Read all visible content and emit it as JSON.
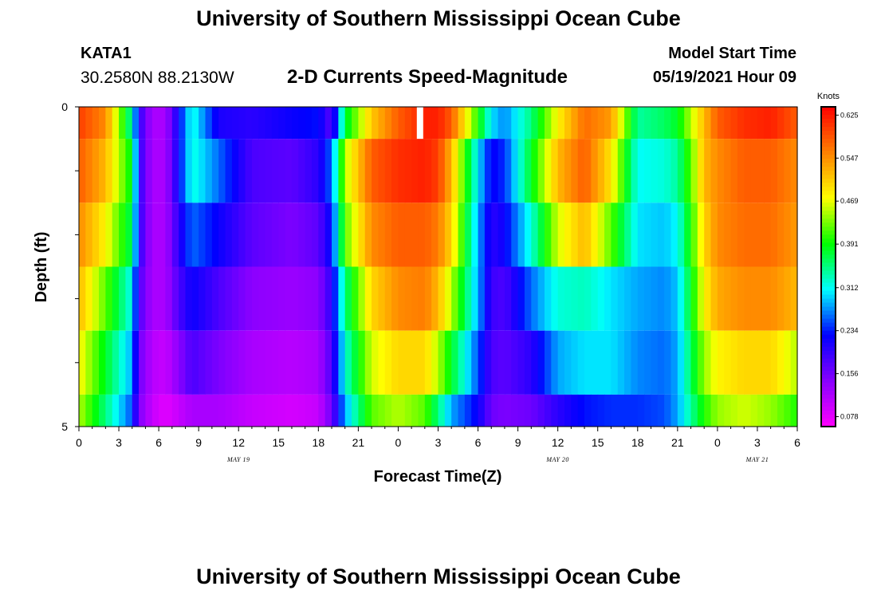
{
  "header": {
    "title": "University of Southern Mississippi Ocean Cube",
    "station": "KATA1",
    "coords": "30.2580N  88.2130W",
    "subtitle": "2-D Currents Speed-Magnitude",
    "model_start_label": "Model Start Time",
    "model_start_value": "05/19/2021 Hour 09"
  },
  "footer": {
    "title": "University of Southern Mississippi Ocean Cube"
  },
  "chart_data": {
    "type": "heatmap",
    "title": "2-D Currents Speed-Magnitude",
    "xlabel": "Forecast Time(Z)",
    "ylabel": "Depth (ft)",
    "x_start_hour": 0,
    "x_end_hour": 54,
    "xticks": [
      {
        "hour": 0,
        "label": "0"
      },
      {
        "hour": 3,
        "label": "3"
      },
      {
        "hour": 6,
        "label": "6"
      },
      {
        "hour": 9,
        "label": "9"
      },
      {
        "hour": 12,
        "label": "12"
      },
      {
        "hour": 15,
        "label": "15"
      },
      {
        "hour": 18,
        "label": "18"
      },
      {
        "hour": 21,
        "label": "21"
      },
      {
        "hour": 24,
        "label": "0"
      },
      {
        "hour": 27,
        "label": "3"
      },
      {
        "hour": 30,
        "label": "6"
      },
      {
        "hour": 33,
        "label": "9"
      },
      {
        "hour": 36,
        "label": "12"
      },
      {
        "hour": 39,
        "label": "15"
      },
      {
        "hour": 42,
        "label": "18"
      },
      {
        "hour": 45,
        "label": "21"
      },
      {
        "hour": 48,
        "label": "0"
      },
      {
        "hour": 51,
        "label": "3"
      },
      {
        "hour": 54,
        "label": "6"
      }
    ],
    "day_labels": [
      {
        "hour": 12,
        "label": "MAY 19"
      },
      {
        "hour": 36,
        "label": "MAY 20"
      },
      {
        "hour": 51,
        "label": "MAY 21"
      }
    ],
    "yticks": [
      {
        "depth": 0,
        "label": "0"
      },
      {
        "depth": 5,
        "label": "5"
      }
    ],
    "ylim": [
      0,
      5
    ],
    "depth_bands": [
      [
        0,
        0.5
      ],
      [
        0.5,
        1.5
      ],
      [
        1.5,
        2.5
      ],
      [
        2.5,
        3.5
      ],
      [
        3.5,
        4.5
      ],
      [
        4.5,
        5
      ]
    ],
    "hour_nodes": [
      0,
      2,
      4,
      4.5,
      5.5,
      6.5,
      7.5,
      8.5,
      10.5,
      13,
      16,
      18,
      19,
      20,
      22,
      24,
      26,
      27,
      28,
      30,
      31,
      32,
      34,
      36,
      38,
      40,
      42,
      44,
      45,
      46,
      47,
      48,
      50,
      52,
      54
    ],
    "speed_profiles": [
      [
        0.6,
        0.55,
        0.33,
        0.2,
        0.12,
        0.12,
        0.22,
        0.32,
        0.21,
        0.2,
        0.22,
        0.23,
        0.17,
        0.37,
        0.51,
        0.58,
        0.62,
        0.62,
        0.58,
        0.4,
        0.3,
        0.27,
        0.35,
        0.48,
        0.57,
        0.54,
        0.34,
        0.36,
        0.38,
        0.45,
        0.52,
        0.58,
        0.61,
        0.62,
        0.58
      ],
      [
        0.58,
        0.52,
        0.38,
        0.2,
        0.12,
        0.12,
        0.22,
        0.32,
        0.26,
        0.18,
        0.17,
        0.2,
        0.26,
        0.45,
        0.58,
        0.61,
        0.62,
        0.6,
        0.52,
        0.3,
        0.22,
        0.24,
        0.38,
        0.52,
        0.58,
        0.49,
        0.31,
        0.32,
        0.34,
        0.42,
        0.52,
        0.55,
        0.58,
        0.58,
        0.55
      ],
      [
        0.55,
        0.48,
        0.36,
        0.2,
        0.12,
        0.12,
        0.2,
        0.26,
        0.22,
        0.17,
        0.15,
        0.17,
        0.23,
        0.42,
        0.55,
        0.58,
        0.58,
        0.56,
        0.5,
        0.28,
        0.2,
        0.22,
        0.32,
        0.46,
        0.52,
        0.42,
        0.3,
        0.29,
        0.31,
        0.4,
        0.5,
        0.55,
        0.57,
        0.57,
        0.54
      ],
      [
        0.52,
        0.42,
        0.31,
        0.18,
        0.12,
        0.12,
        0.18,
        0.22,
        0.18,
        0.14,
        0.13,
        0.14,
        0.2,
        0.35,
        0.5,
        0.55,
        0.56,
        0.52,
        0.45,
        0.28,
        0.19,
        0.18,
        0.26,
        0.32,
        0.33,
        0.3,
        0.28,
        0.27,
        0.29,
        0.38,
        0.48,
        0.53,
        0.55,
        0.55,
        0.52
      ],
      [
        0.48,
        0.38,
        0.28,
        0.16,
        0.11,
        0.1,
        0.14,
        0.18,
        0.15,
        0.12,
        0.11,
        0.12,
        0.18,
        0.32,
        0.46,
        0.5,
        0.5,
        0.45,
        0.38,
        0.25,
        0.18,
        0.17,
        0.2,
        0.28,
        0.3,
        0.3,
        0.27,
        0.26,
        0.28,
        0.36,
        0.44,
        0.48,
        0.5,
        0.5,
        0.45
      ],
      [
        0.45,
        0.35,
        0.25,
        0.15,
        0.1,
        0.08,
        0.1,
        0.12,
        0.12,
        0.1,
        0.09,
        0.1,
        0.16,
        0.28,
        0.42,
        0.45,
        0.42,
        0.35,
        0.28,
        0.22,
        0.16,
        0.15,
        0.16,
        0.2,
        0.23,
        0.24,
        0.24,
        0.25,
        0.28,
        0.34,
        0.4,
        0.44,
        0.46,
        0.44,
        0.4
      ]
    ],
    "missing_marker": {
      "hour": 25.4,
      "depth_from": 0,
      "depth_to": 0.5
    },
    "colorbar": {
      "unit": "Knots",
      "min": 0.06,
      "max": 0.64,
      "ticks": [
        "0.078",
        "0.156",
        "0.234",
        "0.312",
        "0.391",
        "0.469",
        "0.547",
        "0.625"
      ],
      "colors": [
        "#ff00ff",
        "#8800ff",
        "#0000ff",
        "#00ffff",
        "#00ff00",
        "#ffff00",
        "#ff8000",
        "#ff0000"
      ]
    }
  }
}
